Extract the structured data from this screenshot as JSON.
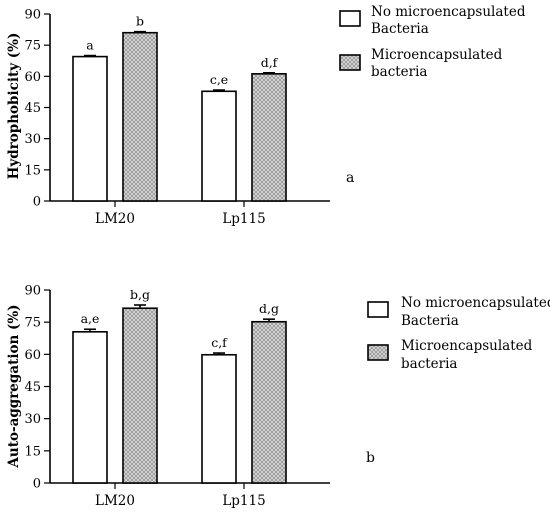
{
  "chart_data": [
    {
      "type": "bar",
      "panel_label": "a",
      "ylabel": "Hydrophobicity (%)",
      "xlabel": "",
      "ylim": [
        0,
        90
      ],
      "yticks": [
        0,
        15,
        30,
        45,
        60,
        75,
        90
      ],
      "categories": [
        "LM20",
        "Lp115"
      ],
      "series": [
        {
          "name": "No microencapsulated Bacteria",
          "values": [
            69.5,
            52.8
          ],
          "errors": [
            0.5,
            0.6
          ],
          "labels": [
            "a",
            "c,e"
          ],
          "fill": "#ffffff"
        },
        {
          "name": "Microencapsulated bacteria",
          "values": [
            81.0,
            61.2
          ],
          "errors": [
            0.5,
            0.5
          ],
          "labels": [
            "b",
            "d,f"
          ],
          "fill": "hatch"
        }
      ],
      "legend": {
        "placement": "top-right",
        "entries": [
          {
            "line1": "No microencapsulated",
            "line2": "Bacteria"
          },
          {
            "line1": "Microencapsulated",
            "line2": "bacteria"
          }
        ]
      },
      "grid": false
    },
    {
      "type": "bar",
      "panel_label": "b",
      "ylabel": "Auto-aggregation (%)",
      "xlabel": "",
      "ylim": [
        0,
        90
      ],
      "yticks": [
        0,
        15,
        30,
        45,
        60,
        75,
        90
      ],
      "categories": [
        "LM20",
        "Lp115"
      ],
      "series": [
        {
          "name": "No microencapsulated Bacteria",
          "values": [
            70.5,
            59.8
          ],
          "errors": [
            1.2,
            0.8
          ],
          "labels": [
            "a,e",
            "c,f"
          ],
          "fill": "#ffffff"
        },
        {
          "name": "Microencapsulated bacteria",
          "values": [
            81.5,
            75.2
          ],
          "errors": [
            1.5,
            1.2
          ],
          "labels": [
            "b,g",
            "d,g"
          ],
          "fill": "hatch"
        }
      ],
      "legend": {
        "placement": "right",
        "entries": [
          {
            "line1": "No microencapsulated",
            "line2": "Bacteria"
          },
          {
            "line1": "Microencapsulated",
            "line2": "bacteria"
          }
        ]
      },
      "grid": false
    }
  ]
}
